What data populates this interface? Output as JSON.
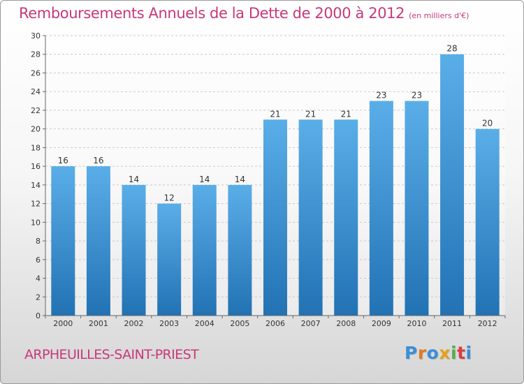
{
  "header": {
    "title": "Remboursements Annuels de la Dette de 2000 à 2012",
    "unit": "(en milliers d'€)"
  },
  "footer": {
    "place": "ARPHEUILLES-SAINT-PRIEST",
    "logo_letters": [
      "P",
      "r",
      "o",
      "x",
      "i",
      "t",
      "i"
    ]
  },
  "colors": {
    "title": "#c8387a",
    "bar_top": "#5aaee8",
    "bar_bottom": "#2272b4",
    "logo": [
      "#3a8fd8",
      "#e07b22",
      "#3a8fd8",
      "#e3a21a",
      "#52b04a",
      "#d94040",
      "#3a8fd8"
    ]
  },
  "chart_data": {
    "type": "bar",
    "title": "Remboursements Annuels de la Dette de 2000 à 2012",
    "xlabel": "",
    "ylabel": "",
    "categories": [
      "2000",
      "2001",
      "2002",
      "2003",
      "2004",
      "2005",
      "2006",
      "2007",
      "2008",
      "2009",
      "2010",
      "2011",
      "2012"
    ],
    "values": [
      16,
      16,
      14,
      12,
      14,
      14,
      21,
      21,
      21,
      23,
      23,
      28,
      20
    ],
    "value_labels": [
      "16",
      "16",
      "14",
      "12",
      "14",
      "14",
      "21",
      "21",
      "21",
      "23",
      "23",
      "28",
      "20"
    ],
    "yticks": [
      0,
      2,
      4,
      6,
      8,
      10,
      12,
      14,
      16,
      18,
      20,
      22,
      24,
      26,
      28,
      30
    ],
    "ylim": [
      0,
      30
    ],
    "grid": true,
    "legend": "none"
  }
}
